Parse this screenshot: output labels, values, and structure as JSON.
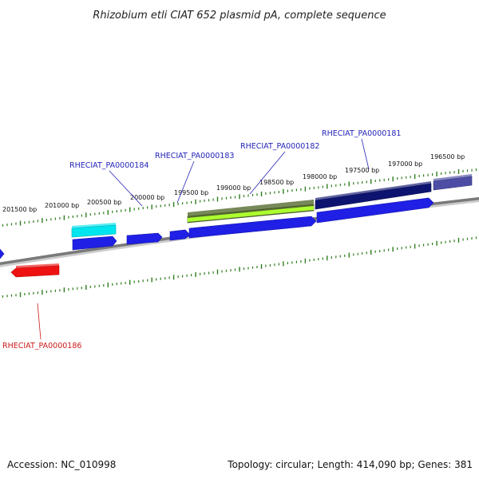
{
  "title": "Rhizobium etli CIAT 652 plasmid pA, complete sequence",
  "footer": {
    "accession": "Accession: NC_010998",
    "summary": "Topology: circular; Length: 414,090 bp; Genes: 381"
  },
  "colors": {
    "backbone": "#7a7a7a",
    "tick": "#2e7d1e",
    "label_blue": "#2424b8",
    "label_red": "#cc1a1a"
  },
  "tick_labels": [
    "201500 bp",
    "201000 bp",
    "200500 bp",
    "200000 bp",
    "199500 bp",
    "199000 bp",
    "198500 bp",
    "198000 bp",
    "197500 bp",
    "197000 bp",
    "196500 bp"
  ],
  "gene_labels": [
    {
      "text": "RHECIAT_PA0000184",
      "color": "#2424b8"
    },
    {
      "text": "RHECIAT_PA0000183",
      "color": "#2424b8"
    },
    {
      "text": "RHECIAT_PA0000182",
      "color": "#2424b8"
    },
    {
      "text": "RHECIAT_PA0000181",
      "color": "#2424b8"
    },
    {
      "text": "RHECIAT_PA0000186",
      "color": "#cc1a1a"
    }
  ],
  "features": [
    {
      "color": "#00e5ee",
      "strand": "+",
      "track": 1
    },
    {
      "color": "#556b2f",
      "strand": "+",
      "track": 1,
      "highlight": "#adff2f"
    },
    {
      "color": "#0d1470",
      "strand": "+",
      "track": 1
    },
    {
      "color": "#4d4da6",
      "strand": "+",
      "track": 1
    },
    {
      "color": "#1f1fe6",
      "strand": "-",
      "track": 2
    },
    {
      "color": "#1f1fe6",
      "strand": "-",
      "track": 2
    },
    {
      "color": "#1f1fe6",
      "strand": "-",
      "track": 2
    },
    {
      "color": "#1f1fe6",
      "strand": "-",
      "track": 2
    },
    {
      "color": "#1f1fe6",
      "strand": "-",
      "track": 2
    },
    {
      "color": "#1f1fe6",
      "strand": "-",
      "track": 2
    },
    {
      "color": "#ee1111",
      "strand": "-",
      "track": 3
    }
  ]
}
